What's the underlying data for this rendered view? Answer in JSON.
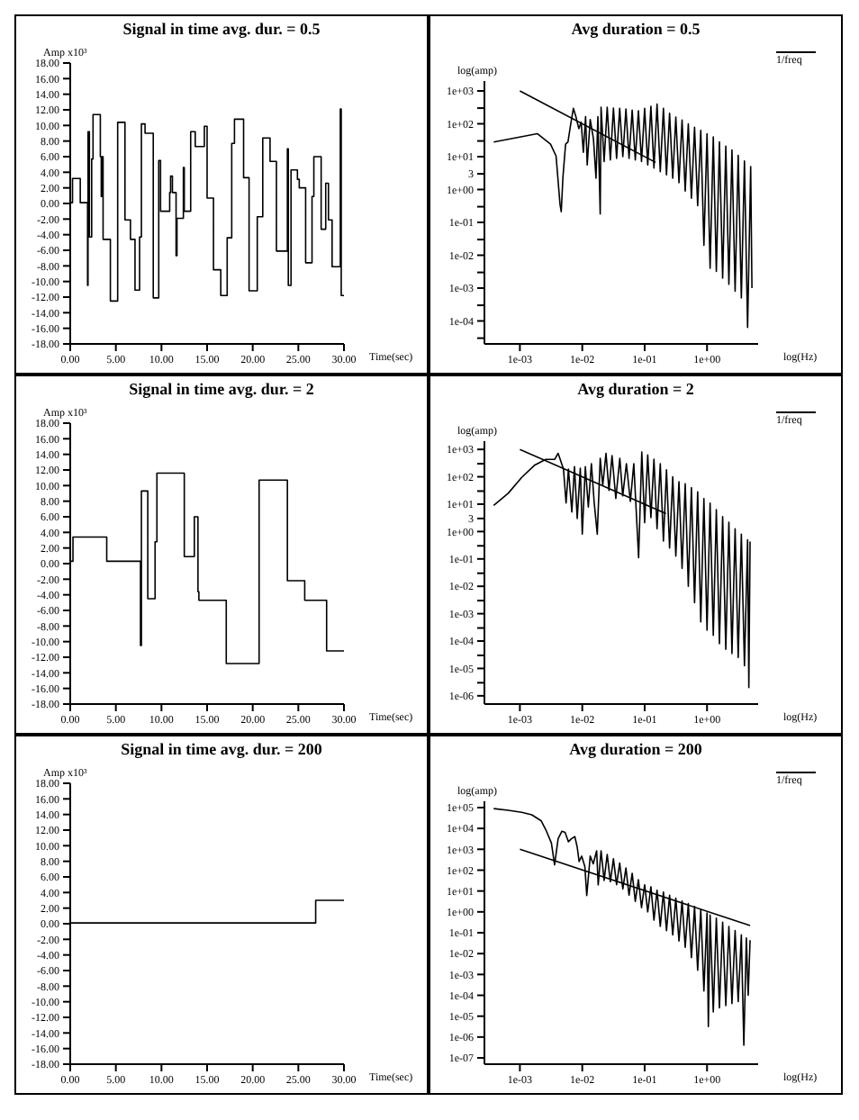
{
  "chart_data": [
    {
      "type": "step",
      "title": "Signal in time avg. dur. = 0.5",
      "xlabel": "Time(sec)",
      "ylabel": "Amp x10³",
      "x": [
        0,
        0.25,
        1.1,
        1.9,
        1.95,
        2.1,
        2.35,
        2.5,
        3.3,
        3.4,
        3.5,
        3.6,
        4.4,
        5.2,
        6.0,
        6.6,
        7.1,
        7.6,
        7.8,
        8.2,
        9.1,
        9.7,
        9.9,
        10.9,
        11.0,
        11.2,
        11.6,
        11.7,
        12.4,
        12.5,
        13.2,
        13.7,
        14.7,
        15.0,
        15.7,
        16.5,
        17.2,
        17.7,
        18.0,
        19.0,
        19.6,
        20.5,
        21.1,
        21.9,
        22.6,
        23.8,
        23.9,
        24.2,
        24.9,
        25.1,
        25.8,
        26.5,
        26.7,
        27.5,
        28.0,
        28.3,
        28.7,
        29.6,
        29.7,
        30
      ],
      "values": [
        0.1,
        3.2,
        0.1,
        -10.5,
        9.2,
        -4.3,
        5.7,
        11.4,
        6.0,
        0.9,
        6.0,
        -4.6,
        -12.5,
        10.4,
        -2.1,
        -4.6,
        -11.1,
        -4.3,
        10.2,
        9.0,
        -12.1,
        5.5,
        -1.0,
        1.4,
        3.5,
        1.4,
        -6.7,
        -1.9,
        4.6,
        -1.0,
        9.2,
        7.3,
        9.9,
        0.7,
        -8.5,
        -11.8,
        -4.4,
        7.7,
        10.8,
        3.3,
        -11.2,
        -1.7,
        8.4,
        5.4,
        -6.1,
        7.0,
        -10.5,
        4.3,
        3.1,
        2.0,
        -7.6,
        0.9,
        6.0,
        -3.3,
        2.6,
        -2.1,
        -8.1,
        12.1,
        -11.8,
        -11.8
      ],
      "color": "#000000",
      "xlim": [
        0,
        30
      ],
      "xticks": [
        {
          "value": 0,
          "label": "0.00"
        },
        {
          "value": 5,
          "label": "5.00"
        },
        {
          "value": 10,
          "label": "10.00"
        },
        {
          "value": 15,
          "label": "15.00"
        },
        {
          "value": 20,
          "label": "20.00"
        },
        {
          "value": 25,
          "label": "25.00"
        },
        {
          "value": 30,
          "label": "30.00"
        }
      ],
      "ylim": [
        -18,
        18
      ],
      "yticks": [
        {
          "value": 18,
          "label": "18.00"
        },
        {
          "value": 16,
          "label": "16.00"
        },
        {
          "value": 14,
          "label": "14.00"
        },
        {
          "value": 12,
          "label": "12.00"
        },
        {
          "value": 10,
          "label": "10.00"
        },
        {
          "value": 8,
          "label": "8.00"
        },
        {
          "value": 6,
          "label": "6.00"
        },
        {
          "value": 4,
          "label": "4.00"
        },
        {
          "value": 2,
          "label": "2.00"
        },
        {
          "value": 0,
          "label": "0.00"
        },
        {
          "value": -2,
          "label": "-2.00"
        },
        {
          "value": -4,
          "label": "-4.00"
        },
        {
          "value": -6,
          "label": "-6.00"
        },
        {
          "value": -8,
          "label": "-8.00"
        },
        {
          "value": -10,
          "label": "-10.00"
        },
        {
          "value": -12,
          "label": "-12.00"
        },
        {
          "value": -14,
          "label": "-14.00"
        },
        {
          "value": -16,
          "label": "-16.00"
        },
        {
          "value": -18,
          "label": "-18.00"
        }
      ]
    },
    {
      "type": "line",
      "title": "Avg duration = 0.5",
      "xlabel": "log(Hz)",
      "ylabel": "log(amp)",
      "log": "xy",
      "legend": "top right",
      "series": [
        {
          "color": "#000000",
          "x": [
            0.00038,
            0.0019,
            0.0031,
            0.0038,
            0.0044,
            0.0046,
            0.0049,
            0.0054,
            0.0059,
            0.0065,
            0.0072,
            0.0079,
            0.0088,
            0.0096,
            0.0104,
            0.0113,
            0.012,
            0.0134,
            0.0151,
            0.0166,
            0.0178,
            0.0194,
            0.02,
            0.0224,
            0.0251,
            0.0282,
            0.0316,
            0.0355,
            0.0398,
            0.0447,
            0.0501,
            0.0562,
            0.0631,
            0.0708,
            0.0794,
            0.0891,
            0.1,
            0.112,
            0.126,
            0.141,
            0.158,
            0.178,
            0.2,
            0.224,
            0.251,
            0.282,
            0.316,
            0.355,
            0.398,
            0.447,
            0.501,
            0.562,
            0.631,
            0.708,
            0.794,
            0.891,
            1.0,
            1.12,
            1.26,
            1.41,
            1.58,
            1.78,
            2.0,
            2.24,
            2.51,
            2.82,
            3.16,
            3.55,
            3.98,
            4.47,
            5.01,
            5.25
          ],
          "values": [
            28,
            50,
            24,
            10.5,
            0.35,
            0.21,
            2.4,
            24,
            28,
            93,
            295,
            165,
            71,
            112,
            13.5,
            165,
            5.6,
            135,
            35,
            2.2,
            165,
            0.18,
            320,
            7.1,
            320,
            7.9,
            300,
            8.9,
            295,
            10,
            280,
            8.9,
            260,
            7.9,
            250,
            7.1,
            295,
            5.6,
            340,
            4.5,
            400,
            3.5,
            295,
            2.8,
            210,
            2.2,
            160,
            1.6,
            130,
            0.89,
            100,
            0.54,
            79,
            0.32,
            63,
            0.02,
            50,
            0.004,
            40,
            0.0032,
            28,
            0.002,
            21,
            0.0013,
            16,
            0.0008,
            11,
            0.0005,
            7.4,
            6.3e-05,
            5.0,
            0.001
          ]
        },
        {
          "name": "1/freq",
          "color": "#000000",
          "x": [
            0.001,
            0.15
          ],
          "values": [
            1000,
            6.7
          ]
        }
      ],
      "xlim": [
        0.00027,
        6.6
      ],
      "xticks": [
        {
          "value": 0.001,
          "label": "1e-03"
        },
        {
          "value": 0.01,
          "label": "1e-02"
        },
        {
          "value": 0.1,
          "label": "1e-01"
        },
        {
          "value": 1,
          "label": "1e+00"
        }
      ],
      "ylim": [
        2e-05,
        2000
      ],
      "yticks": [
        {
          "value": 1000,
          "label": "1e+03"
        },
        {
          "value": 300,
          "label": null
        },
        {
          "value": 100,
          "label": "1e+02"
        },
        {
          "value": 30,
          "label": null
        },
        {
          "value": 10,
          "label": "1e+01"
        },
        {
          "value": 3,
          "label": "3"
        },
        {
          "value": 1,
          "label": "1e+00"
        },
        {
          "value": 0.3,
          "label": null
        },
        {
          "value": 0.1,
          "label": "1e-01"
        },
        {
          "value": 0.03,
          "label": null
        },
        {
          "value": 0.01,
          "label": "1e-02"
        },
        {
          "value": 0.003,
          "label": null
        },
        {
          "value": 0.001,
          "label": "1e-03"
        },
        {
          "value": 0.0003,
          "label": null
        },
        {
          "value": 0.0001,
          "label": "1e-04"
        },
        {
          "value": 3e-05,
          "label": null
        }
      ]
    },
    {
      "type": "step",
      "title": "Signal in time avg. dur. = 2",
      "xlabel": "Time(sec)",
      "ylabel": "Amp x10³",
      "x": [
        0,
        0.3,
        4.0,
        7.7,
        7.8,
        8.5,
        9.3,
        9.5,
        12.5,
        13.6,
        14.0,
        14.1,
        17.1,
        20.7,
        23.8,
        25.7,
        28.1,
        30
      ],
      "values": [
        0.3,
        3.4,
        0.3,
        -10.5,
        9.3,
        -4.5,
        2.8,
        11.6,
        0.9,
        6.0,
        -3.6,
        -4.7,
        -12.8,
        10.7,
        -2.2,
        -4.7,
        -11.2,
        -11.2
      ],
      "color": "#000000",
      "xlim": [
        0,
        30
      ],
      "xticks": [
        {
          "value": 0,
          "label": "0.00"
        },
        {
          "value": 5,
          "label": "5.00"
        },
        {
          "value": 10,
          "label": "10.00"
        },
        {
          "value": 15,
          "label": "15.00"
        },
        {
          "value": 20,
          "label": "20.00"
        },
        {
          "value": 25,
          "label": "25.00"
        },
        {
          "value": 30,
          "label": "30.00"
        }
      ],
      "ylim": [
        -18,
        18
      ],
      "yticks": [
        {
          "value": 18,
          "label": "18.00"
        },
        {
          "value": 16,
          "label": "16.00"
        },
        {
          "value": 14,
          "label": "14.00"
        },
        {
          "value": 12,
          "label": "12.00"
        },
        {
          "value": 10,
          "label": "10.00"
        },
        {
          "value": 8,
          "label": "8.00"
        },
        {
          "value": 6,
          "label": "6.00"
        },
        {
          "value": 4,
          "label": "4.00"
        },
        {
          "value": 2,
          "label": "2.00"
        },
        {
          "value": 0,
          "label": "0.00"
        },
        {
          "value": -2,
          "label": "-2.00"
        },
        {
          "value": -4,
          "label": "-4.00"
        },
        {
          "value": -6,
          "label": "-6.00"
        },
        {
          "value": -8,
          "label": "-8.00"
        },
        {
          "value": -10,
          "label": "-10.00"
        },
        {
          "value": -12,
          "label": "-12.00"
        },
        {
          "value": -14,
          "label": "-14.00"
        },
        {
          "value": -16,
          "label": "-16.00"
        },
        {
          "value": -18,
          "label": "-18.00"
        }
      ]
    },
    {
      "type": "line",
      "title": "Avg duration = 2",
      "xlabel": "log(Hz)",
      "ylabel": "log(amp)",
      "log": "xy",
      "legend": "top right",
      "series": [
        {
          "color": "#000000",
          "x": [
            0.00038,
            0.00065,
            0.00107,
            0.00174,
            0.0026,
            0.0036,
            0.0041,
            0.005,
            0.0055,
            0.006,
            0.0068,
            0.0075,
            0.0083,
            0.0093,
            0.01,
            0.0112,
            0.0125,
            0.014,
            0.0155,
            0.0174,
            0.0194,
            0.0213,
            0.024,
            0.0268,
            0.03,
            0.0345,
            0.04,
            0.0445,
            0.051,
            0.059,
            0.067,
            0.08,
            0.09,
            0.1,
            0.112,
            0.126,
            0.141,
            0.158,
            0.178,
            0.2,
            0.224,
            0.251,
            0.282,
            0.316,
            0.355,
            0.398,
            0.447,
            0.501,
            0.562,
            0.631,
            0.708,
            0.794,
            0.891,
            1.0,
            1.12,
            1.26,
            1.41,
            1.58,
            1.78,
            2.0,
            2.24,
            2.51,
            2.82,
            3.16,
            3.55,
            3.98,
            4.47,
            4.68,
            4.9
          ],
          "values": [
            9,
            25,
            95,
            270,
            430,
            430,
            720,
            190,
            11,
            190,
            5.2,
            235,
            3,
            205,
            0.8,
            235,
            7.8,
            300,
            12,
            0.8,
            470,
            49,
            720,
            32,
            590,
            16,
            470,
            20,
            300,
            12.5,
            300,
            0.11,
            800,
            2.1,
            630,
            3.2,
            440,
            1.26,
            300,
            0.45,
            180,
            0.25,
            100,
            0.126,
            66,
            0.045,
            56,
            0.01,
            40,
            0.0025,
            28,
            0.0005,
            16,
            0.00025,
            11,
            0.00016,
            6.3,
            8e-05,
            3.5,
            5e-05,
            2.2,
            3.5e-05,
            1.26,
            2.5e-05,
            0.8,
            1.26e-05,
            0.5,
            2e-06,
            0.43
          ]
        },
        {
          "name": "1/freq",
          "color": "#000000",
          "x": [
            0.001,
            0.22
          ],
          "values": [
            1000,
            4.5
          ]
        }
      ],
      "xlim": [
        0.00027,
        6.6
      ],
      "xticks": [
        {
          "value": 0.001,
          "label": "1e-03"
        },
        {
          "value": 0.01,
          "label": "1e-02"
        },
        {
          "value": 0.1,
          "label": "1e-01"
        },
        {
          "value": 1,
          "label": "1e+00"
        }
      ],
      "ylim": [
        5e-07,
        2000
      ],
      "yticks": [
        {
          "value": 1000,
          "label": "1e+03"
        },
        {
          "value": 300,
          "label": null
        },
        {
          "value": 100,
          "label": "1e+02"
        },
        {
          "value": 30,
          "label": null
        },
        {
          "value": 10,
          "label": "1e+01"
        },
        {
          "value": 3,
          "label": "3"
        },
        {
          "value": 1,
          "label": "1e+00"
        },
        {
          "value": 0.3,
          "label": null
        },
        {
          "value": 0.1,
          "label": "1e-01"
        },
        {
          "value": 0.03,
          "label": null
        },
        {
          "value": 0.01,
          "label": "1e-02"
        },
        {
          "value": 0.003,
          "label": null
        },
        {
          "value": 0.001,
          "label": "1e-03"
        },
        {
          "value": 0.0003,
          "label": null
        },
        {
          "value": 0.0001,
          "label": "1e-04"
        },
        {
          "value": 3e-05,
          "label": null
        },
        {
          "value": 1e-05,
          "label": "1e-05"
        },
        {
          "value": 3e-06,
          "label": null
        },
        {
          "value": 1e-06,
          "label": "1e-06"
        }
      ]
    },
    {
      "type": "step",
      "title": "Signal in time avg. dur. = 200",
      "xlabel": "Time(sec)",
      "ylabel": "Amp x10³",
      "x": [
        0,
        26.9,
        30
      ],
      "values": [
        0.1,
        3.0,
        3.0
      ],
      "color": "#000000",
      "xlim": [
        0,
        30
      ],
      "xticks": [
        {
          "value": 0,
          "label": "0.00"
        },
        {
          "value": 5,
          "label": "5.00"
        },
        {
          "value": 10,
          "label": "10.00"
        },
        {
          "value": 15,
          "label": "15.00"
        },
        {
          "value": 20,
          "label": "20.00"
        },
        {
          "value": 25,
          "label": "25.00"
        },
        {
          "value": 30,
          "label": "30.00"
        }
      ],
      "ylim": [
        -18,
        18
      ],
      "yticks": [
        {
          "value": 18,
          "label": "18.00"
        },
        {
          "value": 16,
          "label": "16.00"
        },
        {
          "value": 14,
          "label": "14.00"
        },
        {
          "value": 12,
          "label": "12.00"
        },
        {
          "value": 10,
          "label": "10.00"
        },
        {
          "value": 8,
          "label": "8.00"
        },
        {
          "value": 6,
          "label": "6.00"
        },
        {
          "value": 4,
          "label": "4.00"
        },
        {
          "value": 2,
          "label": "2.00"
        },
        {
          "value": 0,
          "label": "0.00"
        },
        {
          "value": -2,
          "label": "-2.00"
        },
        {
          "value": -4,
          "label": "-4.00"
        },
        {
          "value": -6,
          "label": "-6.00"
        },
        {
          "value": -8,
          "label": "-8.00"
        },
        {
          "value": -10,
          "label": "-10.00"
        },
        {
          "value": -12,
          "label": "-12.00"
        },
        {
          "value": -14,
          "label": "-14.00"
        },
        {
          "value": -16,
          "label": "-16.00"
        },
        {
          "value": -18,
          "label": "-18.00"
        }
      ]
    },
    {
      "type": "line",
      "title": "Avg duration = 200",
      "xlabel": "log(Hz)",
      "ylabel": "log(amp)",
      "log": "xy",
      "legend": "top right",
      "series": [
        {
          "color": "#000000",
          "x": [
            0.00038,
            0.00065,
            0.00107,
            0.00155,
            0.0022,
            0.0026,
            0.0032,
            0.0036,
            0.0041,
            0.0047,
            0.0053,
            0.006,
            0.0067,
            0.0076,
            0.0083,
            0.0089,
            0.0098,
            0.011,
            0.0118,
            0.0134,
            0.015,
            0.017,
            0.018,
            0.02,
            0.0224,
            0.0251,
            0.0282,
            0.0316,
            0.0355,
            0.0398,
            0.0447,
            0.0501,
            0.0562,
            0.0631,
            0.0708,
            0.0794,
            0.0891,
            0.1,
            0.112,
            0.126,
            0.141,
            0.158,
            0.178,
            0.2,
            0.224,
            0.251,
            0.282,
            0.316,
            0.355,
            0.398,
            0.447,
            0.501,
            0.562,
            0.631,
            0.708,
            0.794,
            0.891,
            1.0,
            1.05,
            1.12,
            1.26,
            1.41,
            1.58,
            1.78,
            2.0,
            2.24,
            2.51,
            2.82,
            3.16,
            3.55,
            3.89,
            4.27,
            4.57,
            4.9
          ],
          "values": [
            89000,
            74000,
            59000,
            45000,
            23000,
            8700,
            2000,
            180,
            3200,
            7300,
            6500,
            2300,
            3200,
            4100,
            1260,
            260,
            470,
            150,
            6,
            470,
            200,
            850,
            19.5,
            850,
            32,
            560,
            28,
            350,
            20,
            220,
            12.6,
            126,
            6.3,
            71,
            3.2,
            35,
            1.6,
            20,
            1.0,
            16,
            0.4,
            11,
            0.2,
            8.9,
            0.126,
            6.3,
            0.079,
            4.6,
            0.04,
            3.3,
            0.02,
            2.5,
            0.0063,
            1.8,
            0.0016,
            1.26,
            0.00016,
            0.89,
            3.2e-06,
            0.71,
            1.6e-05,
            0.5,
            2.5e-05,
            0.32,
            3.2e-05,
            0.2,
            4e-05,
            0.126,
            5e-05,
            0.079,
            4e-07,
            0.056,
            0.0001,
            0.044
          ]
        },
        {
          "name": "1/freq",
          "color": "#000000",
          "x": [
            0.001,
            4.9
          ],
          "values": [
            1000,
            0.22
          ]
        }
      ],
      "xlim": [
        0.00027,
        6.6
      ],
      "xticks": [
        {
          "value": 0.001,
          "label": "1e-03"
        },
        {
          "value": 0.01,
          "label": "1e-02"
        },
        {
          "value": 0.1,
          "label": "1e-01"
        },
        {
          "value": 1,
          "label": "1e+00"
        }
      ],
      "ylim": [
        5e-08,
        200000
      ],
      "yticks": [
        {
          "value": 100000,
          "label": "1e+05"
        },
        {
          "value": 10000,
          "label": "1e+04"
        },
        {
          "value": 1000,
          "label": "1e+03"
        },
        {
          "value": 100,
          "label": "1e+02"
        },
        {
          "value": 10,
          "label": "1e+01"
        },
        {
          "value": 1,
          "label": "1e+00"
        },
        {
          "value": 0.1,
          "label": "1e-01"
        },
        {
          "value": 0.01,
          "label": "1e-02"
        },
        {
          "value": 0.001,
          "label": "1e-03"
        },
        {
          "value": 0.0001,
          "label": "1e-04"
        },
        {
          "value": 1e-05,
          "label": "1e-05"
        },
        {
          "value": 1e-06,
          "label": "1e-06"
        },
        {
          "value": 1e-07,
          "label": "1e-07"
        }
      ]
    }
  ]
}
